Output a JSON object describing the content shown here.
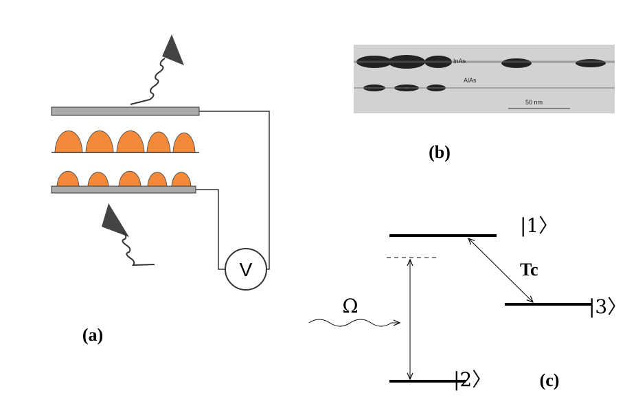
{
  "panel_a": {
    "label": "(a)",
    "meter": "V"
  },
  "panel_b": {
    "label": "(b)",
    "layer_top": "InAs",
    "layer_bottom": "AlAs",
    "scale": "50 nm"
  },
  "panel_c": {
    "label": "(c)",
    "level_1": "|1〉",
    "level_2": "|2〉",
    "level_3": "|3〉",
    "coupling": "Tc",
    "probe": "Ω"
  }
}
